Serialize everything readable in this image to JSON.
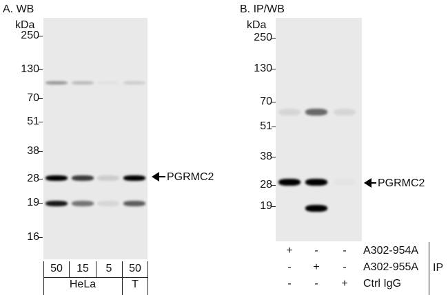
{
  "panel_a": {
    "title": "A. WB",
    "unit": "kDa",
    "markers": [
      "250",
      "130",
      "70",
      "51",
      "38",
      "28",
      "19",
      "16"
    ],
    "target_label": "PGRMC2",
    "lanes": [
      "50",
      "15",
      "5",
      "50"
    ],
    "samples": [
      "HeLa",
      "T"
    ],
    "band_intensity": {
      "100kDa": [
        0.35,
        0.2,
        0.03,
        0.12
      ],
      "28kDa": [
        1.0,
        0.75,
        0.12,
        1.0
      ],
      "19kDa": [
        0.9,
        0.5,
        0.08,
        0.6
      ]
    }
  },
  "panel_b": {
    "title": "B. IP/WB",
    "unit": "kDa",
    "markers": [
      "250",
      "130",
      "70",
      "51",
      "38",
      "28",
      "19"
    ],
    "target_label": "PGRMC2",
    "rows": [
      {
        "label": "A302-954A",
        "values": [
          "+",
          "-",
          "-"
        ]
      },
      {
        "label": "A302-955A",
        "values": [
          "-",
          "+",
          "-"
        ]
      },
      {
        "label": "Ctrl IgG",
        "values": [
          "-",
          "-",
          "+"
        ]
      }
    ],
    "group_label": "IP",
    "band_intensity": {
      "60kDa": [
        0.08,
        0.55,
        0.08
      ],
      "28kDa": [
        1.0,
        1.0,
        0.02
      ],
      "19kDa": [
        0,
        1.0,
        0
      ]
    }
  }
}
